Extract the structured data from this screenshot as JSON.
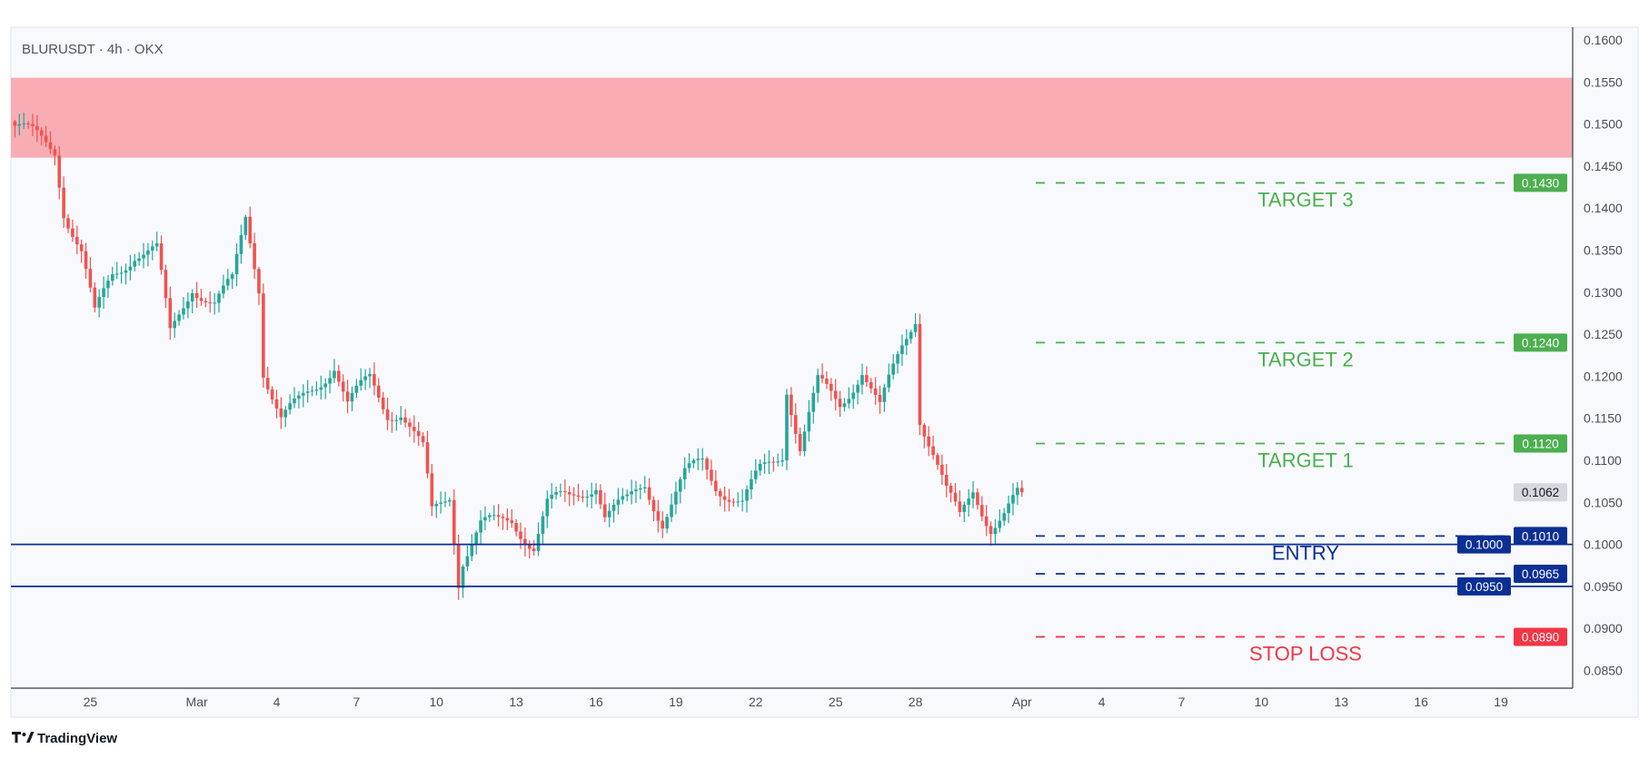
{
  "header": {
    "symbol_title": "BLURUSDT · 4h · OKX"
  },
  "branding": {
    "logo_text": "TradingView"
  },
  "colors": {
    "up": "#26a69a",
    "down": "#ef5350",
    "target": "#4caf50",
    "entry": "#0c2f94",
    "stop": "#f23645",
    "zone": "#f7adb3",
    "last": "#d6d8de"
  },
  "chart_data": {
    "type": "candlestick",
    "title": "BLURUSDT · 4h · OKX",
    "timeframe": "4h",
    "ylim": [
      0.0825,
      0.1625
    ],
    "y_ticks": [
      "0.1600",
      "0.1550",
      "0.1500",
      "0.1450",
      "0.1400",
      "0.1350",
      "0.1300",
      "0.1250",
      "0.1200",
      "0.1150",
      "0.1100",
      "0.1050",
      "0.1000",
      "0.0950",
      "0.0900",
      "0.0850"
    ],
    "x_ticks": [
      {
        "label": "25",
        "bar": 17
      },
      {
        "label": "Mar",
        "bar": 41
      },
      {
        "label": "4",
        "bar": 59
      },
      {
        "label": "7",
        "bar": 77
      },
      {
        "label": "10",
        "bar": 95
      },
      {
        "label": "13",
        "bar": 113
      },
      {
        "label": "16",
        "bar": 131
      },
      {
        "label": "19",
        "bar": 149
      },
      {
        "label": "22",
        "bar": 167
      },
      {
        "label": "25",
        "bar": 185
      },
      {
        "label": "28",
        "bar": 203
      },
      {
        "label": "Apr",
        "bar": 227
      },
      {
        "label": "4",
        "bar": 245
      },
      {
        "label": "7",
        "bar": 263
      },
      {
        "label": "10",
        "bar": 281
      },
      {
        "label": "13",
        "bar": 299
      },
      {
        "label": "16",
        "bar": 317
      },
      {
        "label": "19",
        "bar": 335
      }
    ],
    "bar_count": 228,
    "close_path": [
      [
        0,
        0.1498
      ],
      [
        9,
        0.147
      ],
      [
        11,
        0.14
      ],
      [
        15,
        0.1348
      ],
      [
        18,
        0.127
      ],
      [
        22,
        0.132
      ],
      [
        27,
        0.1348
      ],
      [
        32,
        0.1348
      ],
      [
        35,
        0.1248
      ],
      [
        40,
        0.131
      ],
      [
        45,
        0.1285
      ],
      [
        49,
        0.131
      ],
      [
        52,
        0.139
      ],
      [
        55,
        0.131
      ],
      [
        56,
        0.121
      ],
      [
        60,
        0.1148
      ],
      [
        64,
        0.1166
      ],
      [
        68,
        0.119
      ],
      [
        72,
        0.1216
      ],
      [
        75,
        0.1166
      ],
      [
        80,
        0.1195
      ],
      [
        84,
        0.1158
      ],
      [
        87,
        0.116
      ],
      [
        92,
        0.111
      ],
      [
        94,
        0.1035
      ],
      [
        98,
        0.106
      ],
      [
        100,
        0.096
      ],
      [
        101,
        0.0985
      ],
      [
        105,
        0.1023
      ],
      [
        109,
        0.1023
      ],
      [
        112,
        0.1029
      ],
      [
        117,
        0.1
      ],
      [
        120,
        0.1048
      ],
      [
        125,
        0.1054
      ],
      [
        131,
        0.1075
      ],
      [
        133,
        0.1035
      ],
      [
        138,
        0.1048
      ],
      [
        142,
        0.1073
      ],
      [
        146,
        0.1029
      ],
      [
        151,
        0.108
      ],
      [
        155,
        0.1098
      ],
      [
        158,
        0.1073
      ],
      [
        164,
        0.1048
      ],
      [
        168,
        0.1085
      ],
      [
        173,
        0.111
      ],
      [
        174,
        0.119
      ],
      [
        177,
        0.1116
      ],
      [
        181,
        0.119
      ],
      [
        186,
        0.1166
      ],
      [
        191,
        0.121
      ],
      [
        195,
        0.116
      ],
      [
        200,
        0.1235
      ],
      [
        203,
        0.1273
      ],
      [
        204,
        0.1154
      ],
      [
        207,
        0.111
      ],
      [
        210,
        0.106
      ],
      [
        213,
        0.1029
      ],
      [
        216,
        0.1066
      ],
      [
        220,
        0.1023
      ],
      [
        223,
        0.1035
      ],
      [
        227,
        0.1062
      ]
    ],
    "last_price": "0.1062",
    "resistance_zone": {
      "from": 0.146,
      "to": 0.1555
    },
    "levels": [
      {
        "name": "target-3",
        "price": 0.143,
        "badge": "0.1430",
        "label": "TARGET 3",
        "style": "dashed",
        "kind": "target"
      },
      {
        "name": "target-2",
        "price": 0.124,
        "badge": "0.1240",
        "label": "TARGET 2",
        "style": "dashed",
        "kind": "target"
      },
      {
        "name": "target-1",
        "price": 0.112,
        "badge": "0.1120",
        "label": "TARGET 1",
        "style": "dashed",
        "kind": "target"
      },
      {
        "name": "entry-upper-dashed",
        "price": 0.101,
        "badge": "0.1010",
        "label": "",
        "style": "dashed",
        "kind": "entry"
      },
      {
        "name": "entry-upper-solid",
        "price": 0.1,
        "badge": "0.1000",
        "label": "ENTRY",
        "style": "solid",
        "kind": "entry"
      },
      {
        "name": "entry-lower-dashed",
        "price": 0.0965,
        "badge": "0.0965",
        "label": "",
        "style": "dashed",
        "kind": "entry"
      },
      {
        "name": "entry-lower-solid",
        "price": 0.095,
        "badge": "0.0950",
        "label": "",
        "style": "solid",
        "kind": "entry"
      },
      {
        "name": "stop-loss",
        "price": 0.089,
        "badge": "0.0890",
        "label": "STOP LOSS",
        "style": "dashed",
        "kind": "stop"
      }
    ]
  }
}
